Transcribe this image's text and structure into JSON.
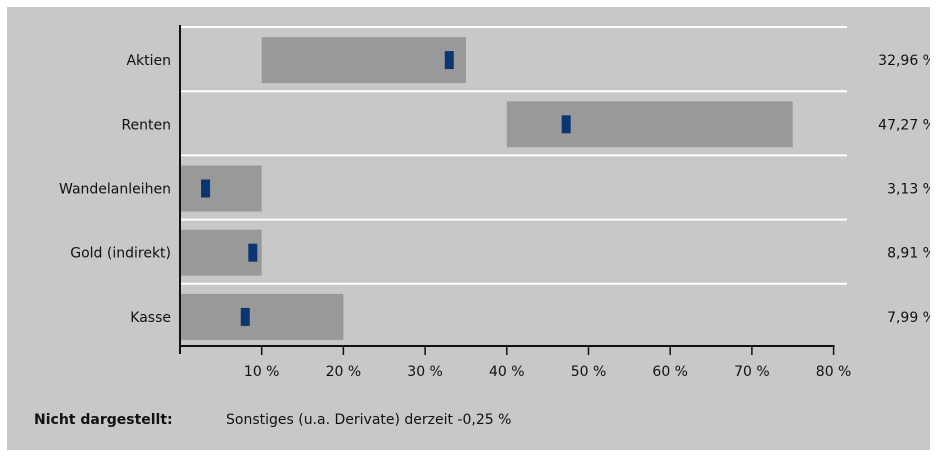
{
  "chart_data": {
    "type": "bar",
    "categories": [
      "Aktien",
      "Renten",
      "Wandelanleihen",
      "Gold (indirekt)",
      "Kasse"
    ],
    "ranges": [
      [
        10,
        35
      ],
      [
        40,
        75
      ],
      [
        0,
        10
      ],
      [
        0,
        10
      ],
      [
        0,
        20
      ]
    ],
    "values": [
      32.96,
      47.27,
      3.13,
      8.91,
      7.99
    ],
    "value_labels": [
      "32,96 %",
      "47,27 %",
      "3,13 %",
      "8,91 %",
      "7,99 %"
    ],
    "xlim": [
      0,
      80
    ],
    "xticks": [
      10,
      20,
      30,
      40,
      50,
      60,
      70,
      80
    ],
    "xtick_labels": [
      "10 %",
      "20 %",
      "30 %",
      "40 %",
      "50 %",
      "60 %",
      "70 %",
      "80 %"
    ],
    "grid": true,
    "colors": {
      "range": "#999999",
      "marker": "#0a3570",
      "background": "#c8c8c8",
      "grid": "#ffffff"
    }
  },
  "footnote": {
    "label": "Nicht dargestellt:",
    "text": "Sonstiges (u.a. Derivate) derzeit  -0,25 %"
  }
}
